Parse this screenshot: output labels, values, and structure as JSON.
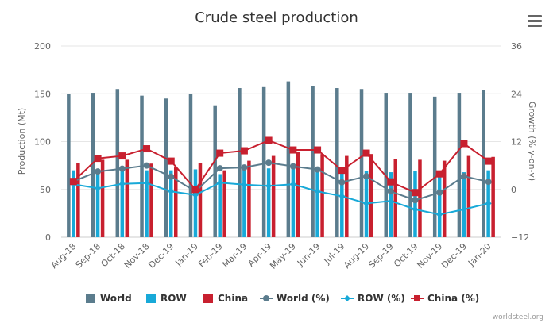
{
  "chart_data": {
    "type": "bar",
    "title": "Crude steel production",
    "left_axis_label": "Production (Mt)",
    "right_axis_label": "Growth (% y-on-y)",
    "left_ylim": [
      0,
      200
    ],
    "left_ticks": [
      "0",
      "50",
      "100",
      "150",
      "200"
    ],
    "right_ylim": [
      -12,
      36
    ],
    "right_ticks": [
      "−12",
      "0",
      "12",
      "24",
      "36"
    ],
    "grid": true,
    "legend_position": "bottom",
    "categories": [
      "Aug-18",
      "Sep-18",
      "Oct-18",
      "Nov-18",
      "Dec-19",
      "Jan-19",
      "Feb-19",
      "Mar-19",
      "Apr-19",
      "May-19",
      "Jun-19",
      "Jul-19",
      "Aug-19",
      "Sep-19",
      "Oct-19",
      "Nov-19",
      "Dec-19",
      "Jan-20"
    ],
    "series": [
      {
        "name": "World",
        "kind": "bar",
        "axis": "left",
        "color": "#5b7c8d",
        "values": [
          150,
          151,
          155,
          148,
          145,
          150,
          138,
          156,
          157,
          163,
          158,
          156,
          155,
          151,
          151,
          147,
          151,
          154
        ]
      },
      {
        "name": "ROW",
        "kind": "bar",
        "axis": "left",
        "color": "#18a9d8",
        "values": [
          70,
          69,
          71,
          70,
          70,
          71,
          66,
          74,
          72,
          75,
          72,
          70,
          69,
          68,
          69,
          67,
          68,
          70
        ]
      },
      {
        "name": "China",
        "kind": "bar",
        "axis": "left",
        "color": "#c8202f",
        "values": [
          78,
          81,
          81,
          77,
          73,
          78,
          70,
          80,
          85,
          89,
          87,
          85,
          87,
          82,
          81,
          80,
          85,
          84
        ]
      },
      {
        "name": "World (%)",
        "kind": "line",
        "axis": "right",
        "color": "#5b7c8d",
        "marker": "circle",
        "values": [
          2,
          4.5,
          5.2,
          6,
          3.2,
          -0.5,
          5.3,
          5.5,
          6.7,
          5.8,
          5,
          1.8,
          3.3,
          -0.5,
          -2.7,
          -0.8,
          3.3,
          1.9
        ]
      },
      {
        "name": "ROW (%)",
        "kind": "line",
        "axis": "right",
        "color": "#18a9d8",
        "marker": "diamond",
        "values": [
          1.3,
          0.3,
          1.4,
          1.6,
          -0.5,
          -1.4,
          1.7,
          1.2,
          0.9,
          1.3,
          -0.5,
          -1.7,
          -3.5,
          -2.9,
          -5,
          -6.3,
          -5,
          -3.5
        ]
      },
      {
        "name": "China (%)",
        "kind": "line",
        "axis": "right",
        "color": "#c8202f",
        "marker": "square",
        "values": [
          2,
          7.8,
          8.4,
          10.2,
          7.1,
          0,
          9.1,
          9.7,
          12.3,
          9.9,
          9.9,
          4.8,
          9.1,
          1.9,
          -0.8,
          3.9,
          11.5,
          7.1
        ]
      }
    ]
  },
  "credit": "worldsteel.org",
  "menu_icon": "hamburger-menu-icon"
}
